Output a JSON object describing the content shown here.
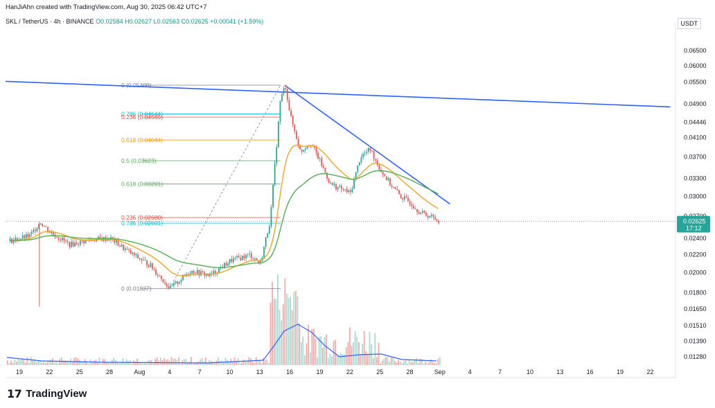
{
  "header": {
    "credit": "HanJiAhn created with TradingView.com, Aug 30, 2025 06:42 UTC+7",
    "symbol": "SKL / TetherUS · 4h · BINANCE",
    "ohlc": "O0.02584 H0.02627 L0.02563 C0.02625 +0.00041 (+1.59%)"
  },
  "currency_button": "USDT",
  "brand": {
    "logo": "17",
    "name": "TradingView"
  },
  "colors": {
    "up": "#26a69a",
    "down": "#ef5350",
    "trendline": "#2962ff",
    "ema_fast": "#f5a21b",
    "ema_slow": "#4caf50",
    "volume_ma": "#2962ff",
    "current_price_bg": "#26a69a"
  },
  "chart_data": {
    "type": "candlestick",
    "title": "SKL / TetherUS · 4h · BINANCE",
    "x_ticks": [
      "19",
      "22",
      "25",
      "28",
      "Aug",
      "4",
      "7",
      "10",
      "13",
      "16",
      "19",
      "22",
      "25",
      "28",
      "Sep",
      "4",
      "7",
      "10",
      "13",
      "16",
      "19",
      "22"
    ],
    "y_ticks": [
      0.065,
      0.06,
      0.055,
      0.049,
      0.04446,
      0.041,
      0.037,
      0.033,
      0.03,
      0.027,
      0.024,
      0.022,
      0.02,
      0.018,
      0.0165,
      0.0151,
      0.0139,
      0.0128
    ],
    "y_tick_labels": [
      "0.06500",
      "0.06000",
      "0.05500",
      "0.04900",
      "0.04446",
      "0.04100",
      "0.03700",
      "0.03300",
      "0.03000",
      "0.02700",
      "0.02400",
      "0.02200",
      "0.02000",
      "0.01800",
      "0.01650",
      "0.01510",
      "0.01390",
      "0.01280"
    ],
    "y_scale": "log",
    "current_price": {
      "value": "0.02625",
      "countdown": "17:12"
    },
    "price_path": [
      [
        "Jul 18",
        0.0237
      ],
      [
        "Jul 20",
        0.0243
      ],
      [
        "Jul 21",
        0.0262
      ],
      [
        "Jul 22",
        0.0248
      ],
      [
        "Jul 24",
        0.0232
      ],
      [
        "Jul 26",
        0.0238
      ],
      [
        "Jul 28",
        0.024
      ],
      [
        "Jul 30",
        0.0222
      ],
      [
        "Aug 1",
        0.0208
      ],
      [
        "Aug 3",
        0.01837
      ],
      [
        "Aug 5",
        0.0202
      ],
      [
        "Aug 7",
        0.0197
      ],
      [
        "Aug 9",
        0.0213
      ],
      [
        "Aug 11",
        0.022
      ],
      [
        "Aug 12",
        0.021
      ],
      [
        "Aug 13",
        0.0265
      ],
      [
        "Aug 14",
        0.05
      ],
      [
        "Aug 14.5",
        0.05408
      ],
      [
        "Aug 15",
        0.046
      ],
      [
        "Aug 16",
        0.038
      ],
      [
        "Aug 17",
        0.04
      ],
      [
        "Aug 18",
        0.036
      ],
      [
        "Aug 19",
        0.032
      ],
      [
        "Aug 21",
        0.0305
      ],
      [
        "Aug 22",
        0.037
      ],
      [
        "Aug 23",
        0.0385
      ],
      [
        "Aug 24",
        0.0345
      ],
      [
        "Aug 25",
        0.032
      ],
      [
        "Aug 26",
        0.03
      ],
      [
        "Aug 27",
        0.029
      ],
      [
        "Aug 28",
        0.0275
      ],
      [
        "Aug 29",
        0.027
      ],
      [
        "Aug 30",
        0.02625
      ]
    ],
    "fibonacci_levels": [
      {
        "label": "0 (0.05408)",
        "value": 0.05408,
        "color": "#787b86"
      },
      {
        "label": "0.786 (0.04644)",
        "value": 0.04644,
        "color": "#00bcd4"
      },
      {
        "label": "0.236 (0.04565)",
        "value": 0.04565,
        "color": "#f44336"
      },
      {
        "label": "0.618 (0.04044)",
        "value": 0.04044,
        "color": "#ff9800"
      },
      {
        "label": "0.5 (0.03623)",
        "value": 0.03623,
        "color": "#4caf50"
      },
      {
        "label": "0.618 (0.03201)",
        "value": 0.03201,
        "color": "#4caf50"
      },
      {
        "label": "0.236 (0.02680)",
        "value": 0.0268,
        "color": "#f44336"
      },
      {
        "label": "0.786 (0.02601)",
        "value": 0.02601,
        "color": "#00bcd4"
      },
      {
        "label": "0 (0.01837)",
        "value": 0.01837,
        "color": "#787b86"
      }
    ],
    "trendlines": [
      {
        "name": "long-descending",
        "from": [
          "Jul 18",
          0.0552
        ],
        "to": [
          "Sep 22",
          0.0482
        ]
      },
      {
        "name": "short-descending",
        "from": [
          "Aug 14.5",
          0.05408
        ],
        "to": [
          "Aug 31",
          0.0288
        ]
      }
    ]
  }
}
